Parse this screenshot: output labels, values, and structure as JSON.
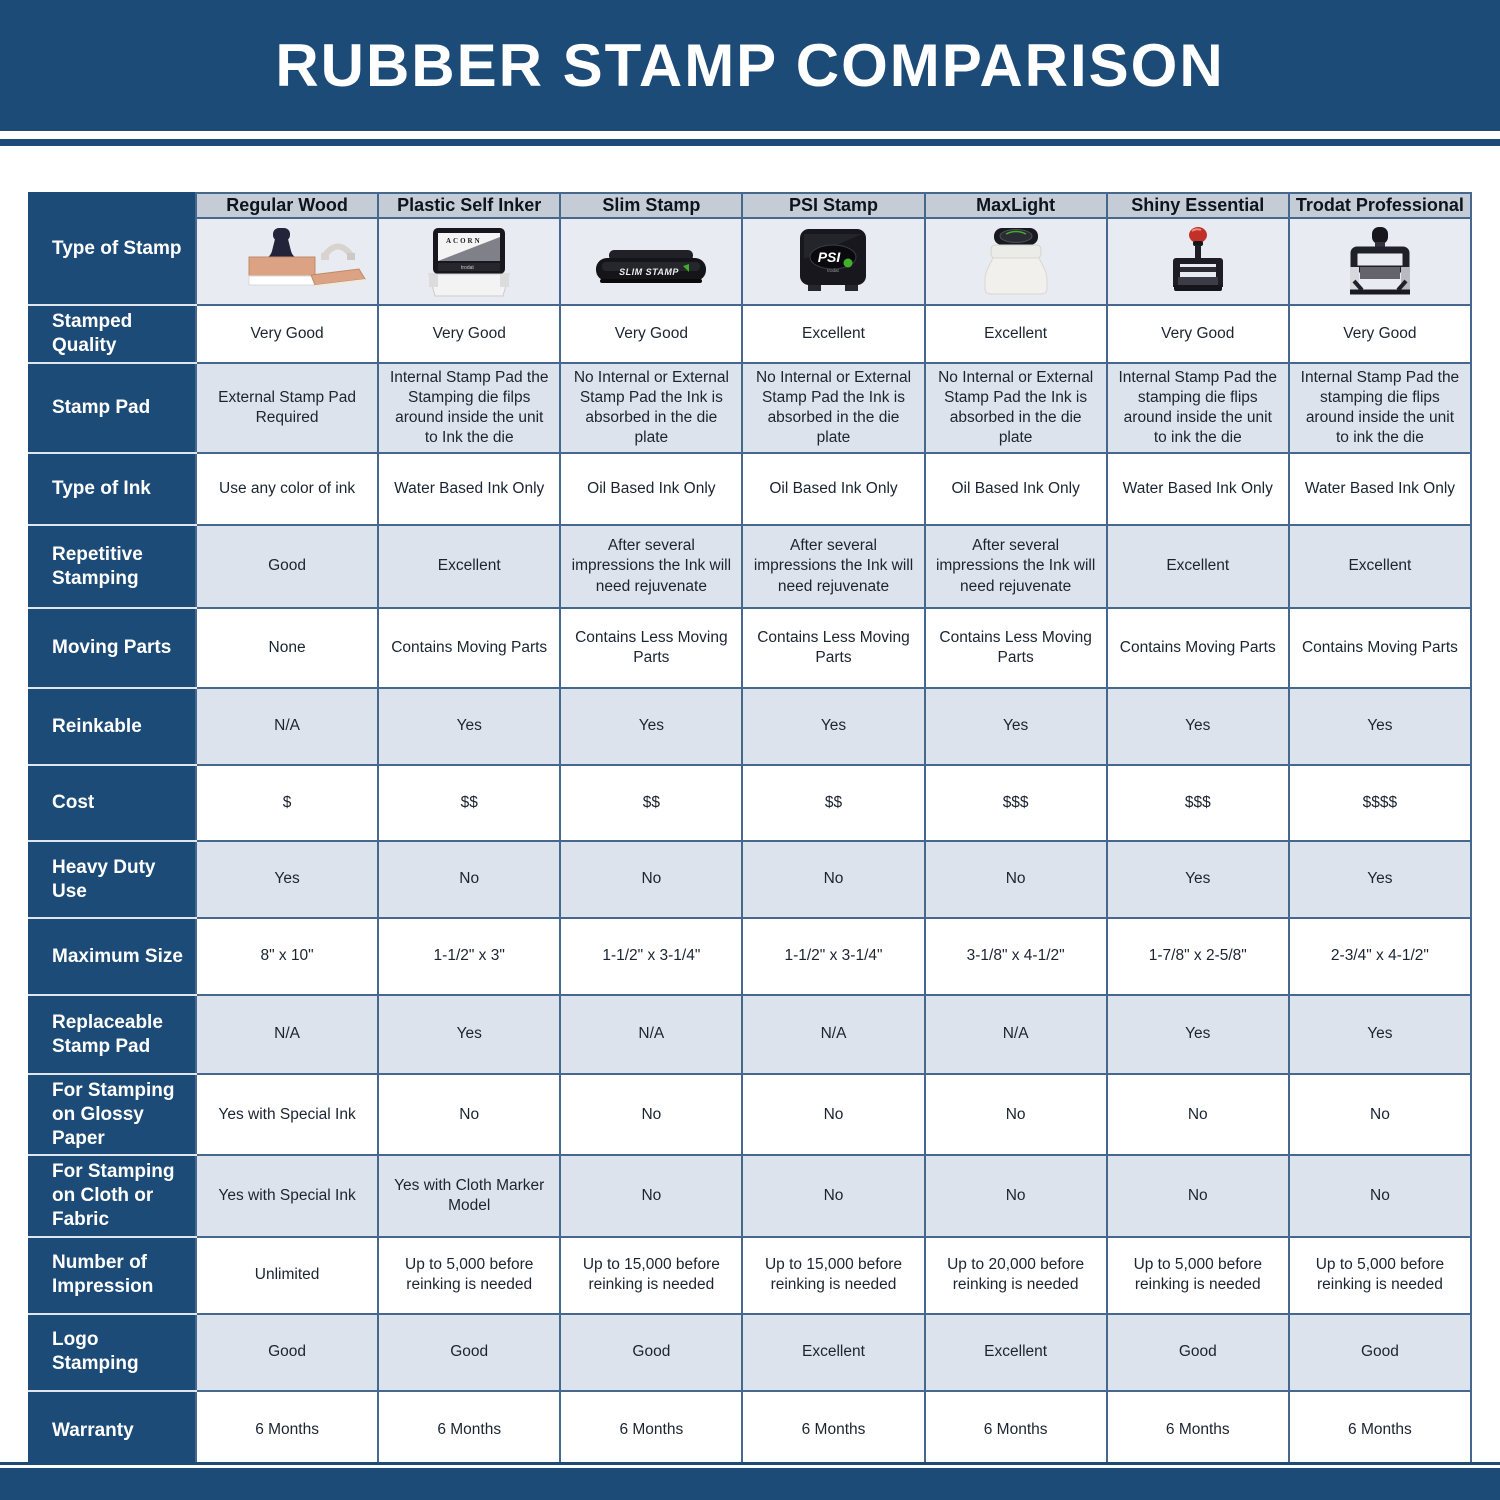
{
  "colors": {
    "accent_blue": "#1d4b77",
    "column_header_bg": "#c6ccd6",
    "zebra_light": "#dce3ec",
    "grid_line": "#46688f",
    "image_row_bg": "#e8ecf2"
  },
  "chart_data": {
    "type": "table",
    "title": "RUBBER STAMP COMPARISON",
    "corner_label": "Type of Stamp",
    "columns": [
      "Regular Wood",
      "Plastic Self Inker",
      "Slim Stamp",
      "PSI Stamp",
      "MaxLight",
      "Shiny Essential",
      "Trodat Professional"
    ],
    "column_icons": [
      "regular-wood-stamp-icon",
      "plastic-self-inker-stamp-icon",
      "slim-stamp-icon",
      "psi-stamp-icon",
      "maxlight-stamp-icon",
      "shiny-essential-stamp-icon",
      "trodat-professional-stamp-icon"
    ],
    "rows": [
      {
        "label": "Stamped Quality",
        "values": [
          "Very Good",
          "Very Good",
          "Very Good",
          "Excellent",
          "Excellent",
          "Very Good",
          "Very Good"
        ]
      },
      {
        "label": "Stamp Pad",
        "values": [
          "External Stamp Pad Required",
          "Internal Stamp Pad the Stamping die filps around inside the unit to Ink the die",
          "No Internal or External Stamp Pad the Ink is absorbed in the die plate",
          "No Internal or External Stamp Pad the Ink is absorbed in the die plate",
          "No Internal or External Stamp Pad the Ink is absorbed in the die plate",
          "Internal Stamp Pad the stamping die flips around inside the unit to ink the die",
          "Internal Stamp Pad the stamping die flips around inside the unit to ink the die"
        ]
      },
      {
        "label": "Type of Ink",
        "values": [
          "Use any color of ink",
          "Water Based Ink Only",
          "Oil Based Ink Only",
          "Oil Based Ink Only",
          "Oil Based Ink Only",
          "Water Based Ink Only",
          "Water Based Ink Only"
        ]
      },
      {
        "label": "Repetitive Stamping",
        "values": [
          "Good",
          "Excellent",
          "After several impressions the Ink will need rejuvenate",
          "After several impressions the Ink will need rejuvenate",
          "After several impressions the Ink will need rejuvenate",
          "Excellent",
          "Excellent"
        ]
      },
      {
        "label": "Moving Parts",
        "values": [
          "None",
          "Contains Moving Parts",
          "Contains Less Moving Parts",
          "Contains Less Moving Parts",
          "Contains Less Moving Parts",
          "Contains Moving Parts",
          "Contains Moving Parts"
        ]
      },
      {
        "label": "Reinkable",
        "values": [
          "N/A",
          "Yes",
          "Yes",
          "Yes",
          "Yes",
          "Yes",
          "Yes"
        ]
      },
      {
        "label": "Cost",
        "values": [
          "$",
          "$$",
          "$$",
          "$$",
          "$$$",
          "$$$",
          "$$$$"
        ]
      },
      {
        "label": "Heavy Duty Use",
        "values": [
          "Yes",
          "No",
          "No",
          "No",
          "No",
          "Yes",
          "Yes"
        ]
      },
      {
        "label": "Maximum Size",
        "values": [
          "8\" x 10\"",
          "1-1/2\" x 3\"",
          "1-1/2\" x 3-1/4\"",
          "1-1/2\" x 3-1/4\"",
          "3-1/8\" x 4-1/2\"",
          "1-7/8\" x 2-5/8\"",
          "2-3/4\" x 4-1/2\""
        ]
      },
      {
        "label": "Replaceable Stamp Pad",
        "values": [
          "N/A",
          "Yes",
          "N/A",
          "N/A",
          "N/A",
          "Yes",
          "Yes"
        ]
      },
      {
        "label": "For Stamping on Glossy Paper",
        "values": [
          "Yes with Special Ink",
          "No",
          "No",
          "No",
          "No",
          "No",
          "No"
        ]
      },
      {
        "label": "For Stamping on Cloth or Fabric",
        "values": [
          "Yes with Special Ink",
          "Yes with Cloth Marker Model",
          "No",
          "No",
          "No",
          "No",
          "No"
        ]
      },
      {
        "label": "Number of Impression",
        "values": [
          "Unlimited",
          "Up to 5,000 before reinking is needed",
          "Up to 15,000 before reinking is needed",
          "Up to 15,000 before reinking is needed",
          "Up to 20,000 before reinking is needed",
          "Up to 5,000 before reinking is needed",
          "Up to 5,000 before reinking is needed"
        ]
      },
      {
        "label": "Logo Stamping",
        "values": [
          "Good",
          "Good",
          "Good",
          "Excellent",
          "Excellent",
          "Good",
          "Good"
        ]
      },
      {
        "label": "Warranty",
        "values": [
          "6 Months",
          "6 Months",
          "6 Months",
          "6 Months",
          "6 Months",
          "6 Months",
          "6 Months"
        ]
      }
    ]
  }
}
